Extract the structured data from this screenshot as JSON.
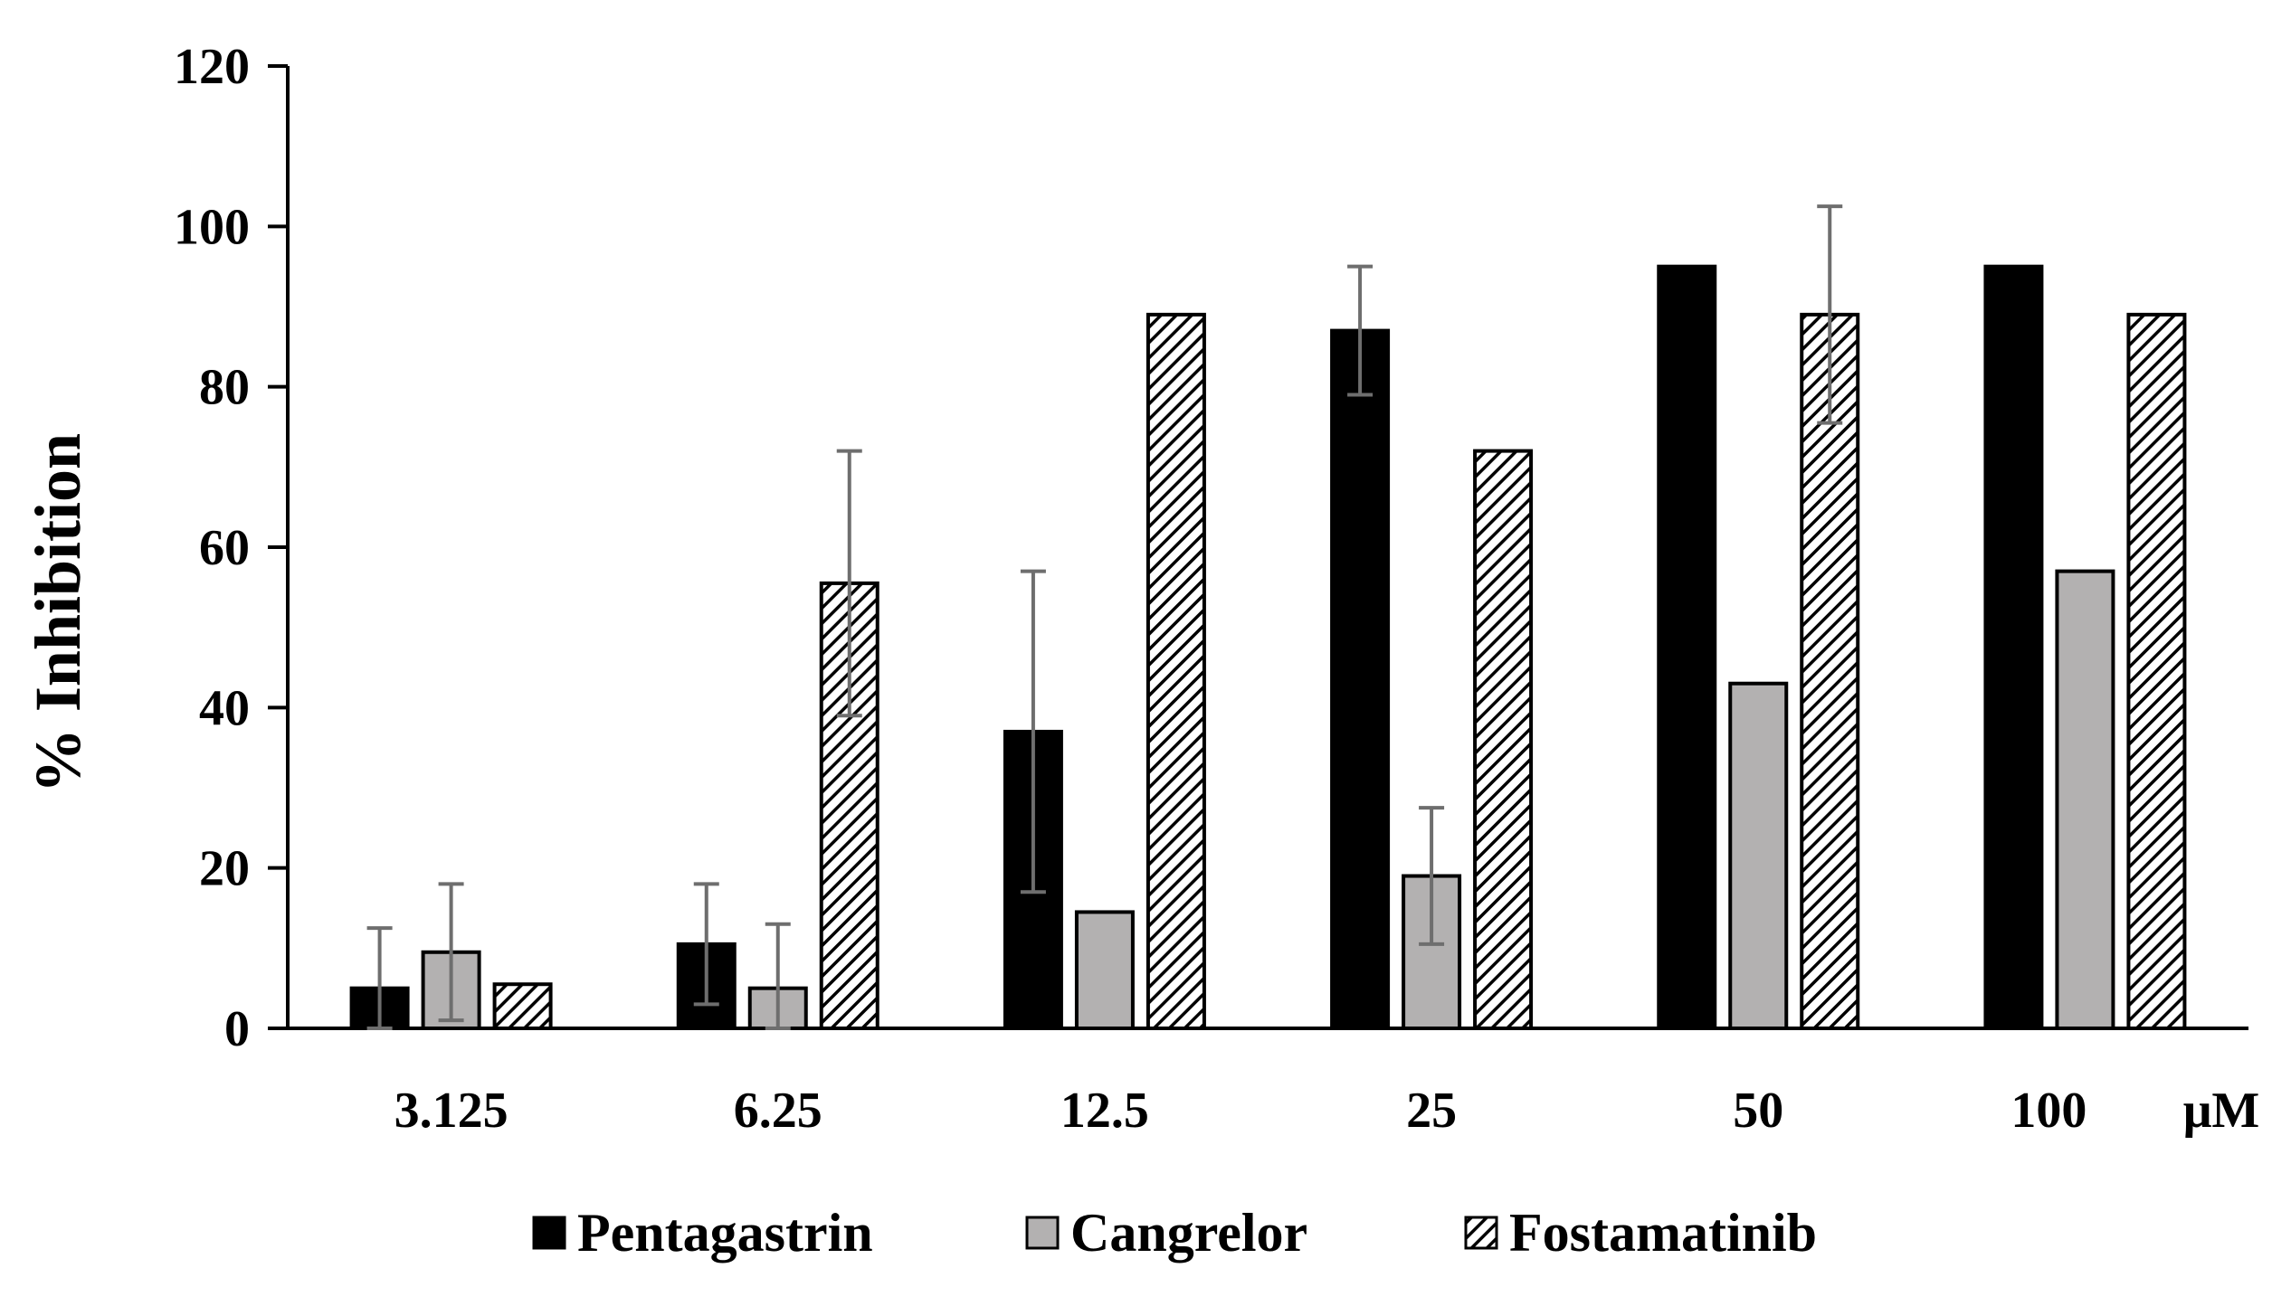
{
  "chart_data": {
    "type": "bar",
    "title": "",
    "xlabel": "μM",
    "ylabel": "% Inhibition",
    "categories": [
      "3.125",
      "6.25",
      "12.5",
      "25",
      "50",
      "100"
    ],
    "ylim": [
      0,
      120
    ],
    "yticks": [
      0,
      20,
      40,
      60,
      80,
      100,
      120
    ],
    "grid": false,
    "legend_position": "bottom",
    "series": [
      {
        "name": "Pentagastrin",
        "style": "solid",
        "color": "#000000",
        "values": [
          5,
          10.5,
          37,
          87,
          95,
          95
        ],
        "errors": [
          7.5,
          7.5,
          20,
          8,
          0,
          0
        ]
      },
      {
        "name": "Cangrelor",
        "style": "solid",
        "color": "#b3b1b1",
        "values": [
          9.5,
          5,
          14.5,
          19,
          43,
          57
        ],
        "errors": [
          8.5,
          8,
          0,
          8.5,
          0,
          0
        ]
      },
      {
        "name": "Fostamatinib",
        "style": "hatched",
        "color": "#000000",
        "values": [
          5.5,
          55.5,
          89,
          72,
          89,
          89
        ],
        "errors": [
          0,
          16.5,
          0,
          0,
          13.5,
          0
        ]
      }
    ]
  }
}
